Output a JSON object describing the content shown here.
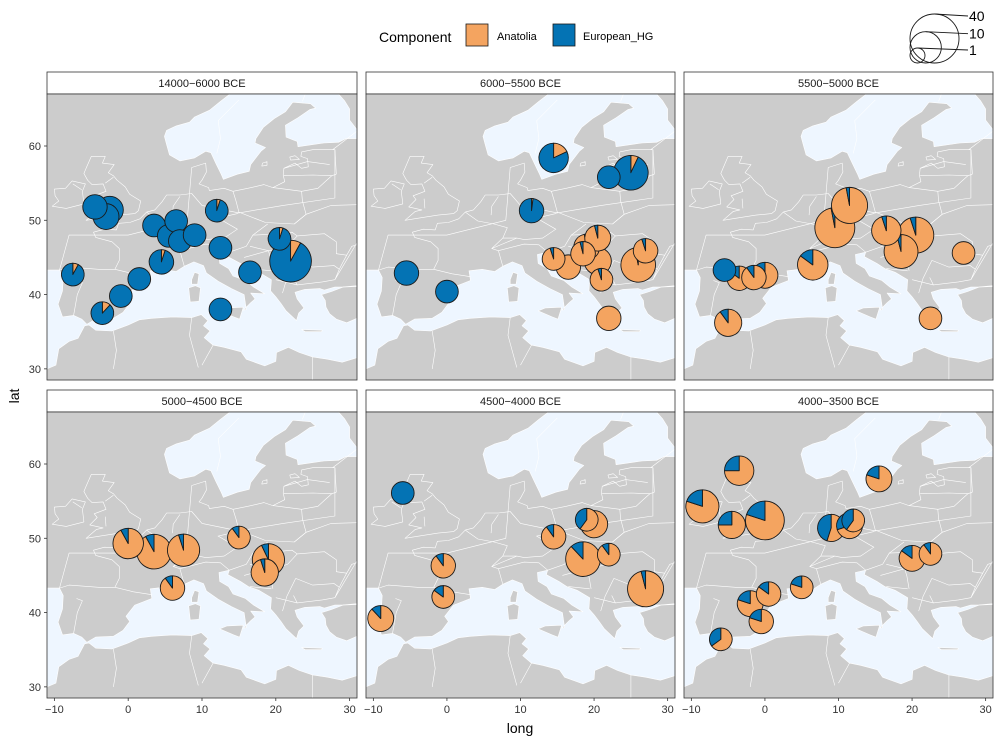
{
  "chart_data": {
    "type": "scatter",
    "subtype": "faceted-map-pie",
    "xlabel": "long",
    "ylabel": "lat",
    "xlim": [
      -11,
      31
    ],
    "ylim": [
      28.5,
      67
    ],
    "x_ticks": [
      -10,
      0,
      10,
      20,
      30
    ],
    "x_tick_labels": [
      "−10",
      "0",
      "10",
      "20",
      "30"
    ],
    "y_ticks": [
      30,
      40,
      50,
      60
    ],
    "y_tick_labels": [
      "30",
      "40",
      "50",
      "60"
    ],
    "legend": {
      "title": "Component",
      "position": "top",
      "entries": [
        {
          "name": "Anatolia",
          "color": "#F4A460"
        },
        {
          "name": "European_HG",
          "color": "#0473B4"
        }
      ],
      "size_legend": [
        {
          "value": 40,
          "label": "40"
        },
        {
          "value": 10,
          "label": "10"
        },
        {
          "value": 1,
          "label": "1"
        }
      ]
    },
    "colors": {
      "map_land": "#CCCCCC",
      "map_sea": "#EEF6FF",
      "borders": "#FFFFFF"
    },
    "panels": [
      {
        "title": "14000−6000 BCE",
        "points": [
          {
            "long": -7.5,
            "lat": 42.7,
            "n": 3,
            "anatolia": 0.08
          },
          {
            "long": -4.5,
            "lat": 51.8,
            "n": 4,
            "anatolia": 0.0
          },
          {
            "long": -3.5,
            "lat": 37.5,
            "n": 3,
            "anatolia": 0.12
          },
          {
            "long": -3.0,
            "lat": 50.5,
            "n": 5,
            "anatolia": 0.0
          },
          {
            "long": -2.5,
            "lat": 51.4,
            "n": 6,
            "anatolia": 0.0
          },
          {
            "long": -1.0,
            "lat": 39.8,
            "n": 3,
            "anatolia": 0.0
          },
          {
            "long": 1.5,
            "lat": 42.1,
            "n": 3,
            "anatolia": 0.0
          },
          {
            "long": 3.5,
            "lat": 49.3,
            "n": 3,
            "anatolia": 0.0
          },
          {
            "long": 4.5,
            "lat": 44.4,
            "n": 4,
            "anatolia": 0.05
          },
          {
            "long": 5.5,
            "lat": 47.9,
            "n": 3,
            "anatolia": 0.0
          },
          {
            "long": 6.5,
            "lat": 49.9,
            "n": 3,
            "anatolia": 0.0
          },
          {
            "long": 7.0,
            "lat": 47.2,
            "n": 3,
            "anatolia": 0.0
          },
          {
            "long": 9.0,
            "lat": 48.0,
            "n": 3,
            "anatolia": 0.0
          },
          {
            "long": 12.0,
            "lat": 51.3,
            "n": 3,
            "anatolia": 0.05
          },
          {
            "long": 12.5,
            "lat": 46.3,
            "n": 3,
            "anatolia": 0.0
          },
          {
            "long": 12.5,
            "lat": 38.0,
            "n": 3,
            "anatolia": 0.0
          },
          {
            "long": 16.5,
            "lat": 43.0,
            "n": 3,
            "anatolia": 0.0
          },
          {
            "long": 20.5,
            "lat": 47.5,
            "n": 3,
            "anatolia": 0.05
          },
          {
            "long": 22.0,
            "lat": 44.5,
            "n": 25,
            "anatolia": 0.08
          }
        ]
      },
      {
        "title": "6000−5500 BCE",
        "points": [
          {
            "long": -5.5,
            "lat": 42.9,
            "n": 4,
            "anatolia": 0.0
          },
          {
            "long": 0.0,
            "lat": 40.4,
            "n": 3,
            "anatolia": 0.0
          },
          {
            "long": 11.5,
            "lat": 51.3,
            "n": 4,
            "anatolia": 0.02
          },
          {
            "long": 14.5,
            "lat": 58.4,
            "n": 8,
            "anatolia": 0.18
          },
          {
            "long": 14.5,
            "lat": 44.8,
            "n": 3,
            "anatolia": 0.95
          },
          {
            "long": 16.5,
            "lat": 43.7,
            "n": 4,
            "anatolia": 1.0
          },
          {
            "long": 18.5,
            "lat": 45.5,
            "n": 4,
            "anatolia": 0.96
          },
          {
            "long": 19.0,
            "lat": 46.4,
            "n": 5,
            "anatolia": 0.97
          },
          {
            "long": 20.5,
            "lat": 47.6,
            "n": 5,
            "anatolia": 0.96
          },
          {
            "long": 20.5,
            "lat": 44.5,
            "n": 6,
            "anatolia": 1.0
          },
          {
            "long": 21.0,
            "lat": 42.0,
            "n": 3,
            "anatolia": 0.95
          },
          {
            "long": 22.0,
            "lat": 55.8,
            "n": 3,
            "anatolia": 0.0
          },
          {
            "long": 22.0,
            "lat": 36.8,
            "n": 4,
            "anatolia": 1.0
          },
          {
            "long": 25.0,
            "lat": 56.4,
            "n": 14,
            "anatolia": 0.07
          },
          {
            "long": 26.0,
            "lat": 44.0,
            "n": 14,
            "anatolia": 0.97
          },
          {
            "long": 27.0,
            "lat": 45.9,
            "n": 4,
            "anatolia": 0.95
          }
        ]
      },
      {
        "title": "5500−5000 BCE",
        "points": [
          {
            "long": -5.5,
            "lat": 43.3,
            "n": 3,
            "anatolia": 0.0
          },
          {
            "long": -5.0,
            "lat": 36.2,
            "n": 6,
            "anatolia": 0.9
          },
          {
            "long": -3.5,
            "lat": 42.2,
            "n": 4,
            "anatolia": 0.85
          },
          {
            "long": -1.5,
            "lat": 42.3,
            "n": 4,
            "anatolia": 0.9
          },
          {
            "long": 0.0,
            "lat": 42.6,
            "n": 5,
            "anatolia": 0.85
          },
          {
            "long": 6.5,
            "lat": 44.0,
            "n": 9,
            "anatolia": 0.85
          },
          {
            "long": 9.5,
            "lat": 49.0,
            "n": 22,
            "anatolia": 0.97
          },
          {
            "long": 11.5,
            "lat": 52.0,
            "n": 16,
            "anatolia": 0.97
          },
          {
            "long": 16.5,
            "lat": 48.6,
            "n": 8,
            "anatolia": 0.95
          },
          {
            "long": 18.5,
            "lat": 45.8,
            "n": 13,
            "anatolia": 0.96
          },
          {
            "long": 20.5,
            "lat": 48.0,
            "n": 16,
            "anatolia": 0.95
          },
          {
            "long": 22.5,
            "lat": 36.8,
            "n": 3,
            "anatolia": 1.0
          },
          {
            "long": 27.0,
            "lat": 45.6,
            "n": 3,
            "anatolia": 1.0
          }
        ]
      },
      {
        "title": "5000−4500 BCE",
        "points": [
          {
            "long": 0.0,
            "lat": 49.3,
            "n": 9,
            "anatolia": 0.92
          },
          {
            "long": 3.5,
            "lat": 48.2,
            "n": 14,
            "anatolia": 0.92
          },
          {
            "long": 6.0,
            "lat": 43.3,
            "n": 4,
            "anatolia": 0.9
          },
          {
            "long": 7.5,
            "lat": 48.4,
            "n": 11,
            "anatolia": 0.95
          },
          {
            "long": 15.0,
            "lat": 50.1,
            "n": 3,
            "anatolia": 0.9
          },
          {
            "long": 18.5,
            "lat": 45.4,
            "n": 6,
            "anatolia": 0.95
          },
          {
            "long": 19.0,
            "lat": 47.1,
            "n": 11,
            "anatolia": 0.93
          }
        ]
      },
      {
        "title": "4500−4000 BCE",
        "points": [
          {
            "long": -6.0,
            "lat": 56.1,
            "n": 3,
            "anatolia": 0.0
          },
          {
            "long": -9.0,
            "lat": 39.2,
            "n": 5,
            "anatolia": 0.88
          },
          {
            "long": -0.5,
            "lat": 46.3,
            "n": 4,
            "anatolia": 0.9
          },
          {
            "long": -0.5,
            "lat": 42.1,
            "n": 3,
            "anatolia": 0.85
          },
          {
            "long": 14.5,
            "lat": 50.2,
            "n": 4,
            "anatolia": 0.9
          },
          {
            "long": 19.0,
            "lat": 52.5,
            "n": 3,
            "anatolia": 0.6
          },
          {
            "long": 20.0,
            "lat": 51.9,
            "n": 6,
            "anatolia": 0.88
          },
          {
            "long": 18.5,
            "lat": 47.2,
            "n": 14,
            "anatolia": 0.88
          },
          {
            "long": 22.0,
            "lat": 47.8,
            "n": 3,
            "anatolia": 0.9
          },
          {
            "long": 27.0,
            "lat": 43.2,
            "n": 16,
            "anatolia": 0.96
          }
        ]
      },
      {
        "title": "4000−3500 BCE",
        "points": [
          {
            "long": -8.5,
            "lat": 54.3,
            "n": 12,
            "anatolia": 0.8
          },
          {
            "long": -4.5,
            "lat": 51.8,
            "n": 6,
            "anatolia": 0.75
          },
          {
            "long": -3.5,
            "lat": 59.1,
            "n": 8,
            "anatolia": 0.75
          },
          {
            "long": -2.0,
            "lat": 41.2,
            "n": 5,
            "anatolia": 0.8
          },
          {
            "long": -0.5,
            "lat": 38.8,
            "n": 4,
            "anatolia": 0.8
          },
          {
            "long": 0.0,
            "lat": 52.4,
            "n": 20,
            "anatolia": 0.8
          },
          {
            "long": 0.5,
            "lat": 42.5,
            "n": 4,
            "anatolia": 0.85
          },
          {
            "long": -6.0,
            "lat": 36.4,
            "n": 3,
            "anatolia": 0.65
          },
          {
            "long": 5.0,
            "lat": 43.4,
            "n": 3,
            "anatolia": 0.8
          },
          {
            "long": 9.0,
            "lat": 51.4,
            "n": 6,
            "anatolia": 0.55
          },
          {
            "long": 11.5,
            "lat": 51.7,
            "n": 5,
            "anatolia": 0.7
          },
          {
            "long": 12.0,
            "lat": 52.4,
            "n": 3,
            "anatolia": 0.6
          },
          {
            "long": 15.5,
            "lat": 58.0,
            "n": 5,
            "anatolia": 0.8
          },
          {
            "long": 20.0,
            "lat": 47.3,
            "n": 5,
            "anatolia": 0.85
          },
          {
            "long": 22.5,
            "lat": 47.9,
            "n": 3,
            "anatolia": 0.9
          }
        ]
      }
    ]
  }
}
